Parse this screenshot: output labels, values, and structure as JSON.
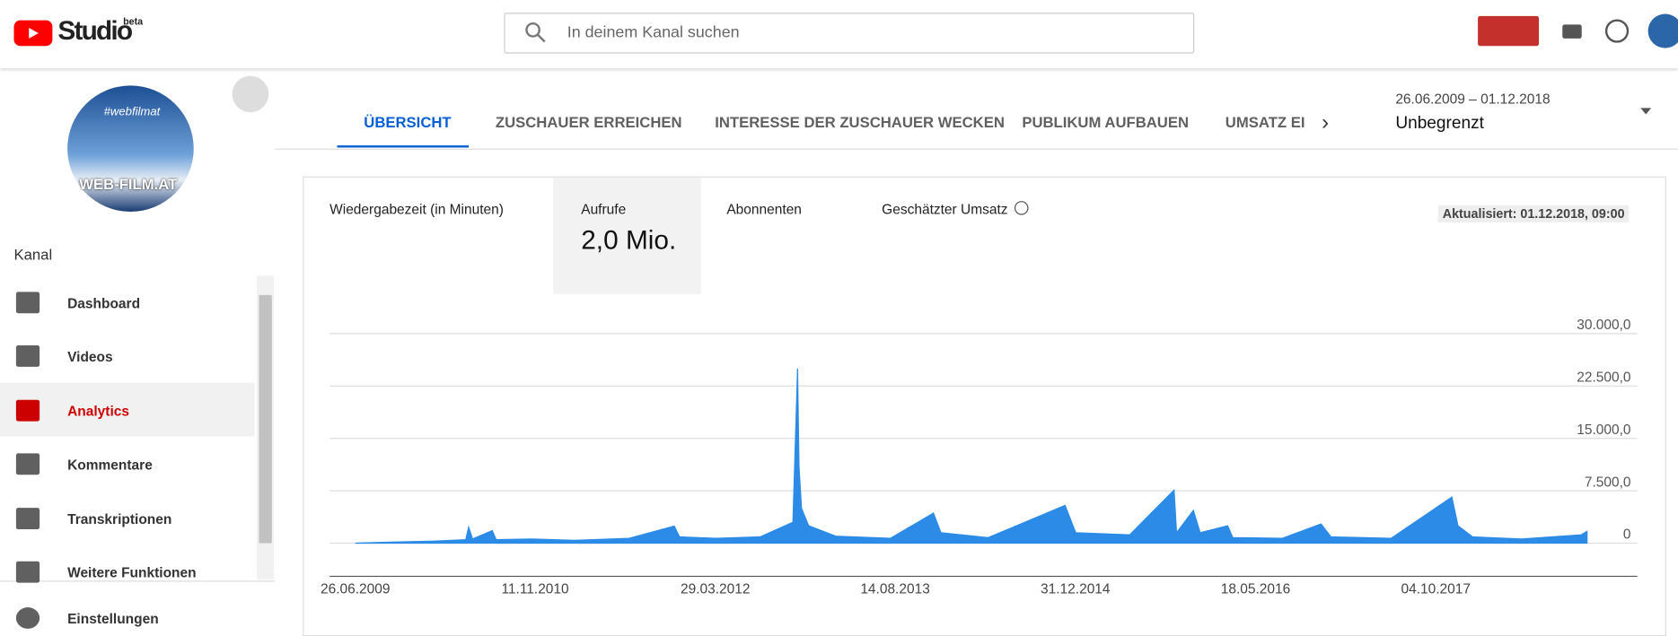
{
  "header": {
    "logo": "Studio",
    "badge": "beta",
    "search_placeholder": "In deinem Kanal suchen"
  },
  "sidebar": {
    "avatar_tag": "#webfilmat",
    "avatar_brand": "WEB-FILM.AT",
    "section": "Kanal",
    "items": [
      "Dashboard",
      "Videos",
      "Analytics",
      "Kommentare",
      "Transkriptionen",
      "Weitere Funktionen"
    ],
    "settings": "Einstellungen"
  },
  "tabs": [
    "ÜBERSICHT",
    "ZUSCHAUER ERREICHEN",
    "INTERESSE DER ZUSCHAUER WECKEN",
    "PUBLIKUM AUFBAUEN",
    "UMSATZ EI"
  ],
  "date_range": {
    "range": "26.06.2009 – 01.12.2018",
    "period": "Unbegrenzt"
  },
  "metrics": [
    {
      "label": "Wiedergabezeit (in Minuten)"
    },
    {
      "label": "Aufrufe",
      "value": "2,0 Mio."
    },
    {
      "label": "Abonnenten"
    },
    {
      "label": "Geschätzter Umsatz"
    }
  ],
  "updated": "Aktualisiert: 01.12.2018, 09:00",
  "chart_data": {
    "type": "area",
    "color": "#2b8be6",
    "grid": true,
    "x": [
      "26.06.2009",
      "01.10.2009",
      "01.02.2010",
      "01.05.2010",
      "09.05.2010",
      "20.05.2010",
      "14.07.2010",
      "25.07.2010",
      "01.11.2010",
      "01.03.2011",
      "01.08.2011",
      "05.12.2011",
      "20.12.2011",
      "01.04.2012",
      "01.08.2012",
      "01.11.2012",
      "14.11.2012",
      "18.11.2012",
      "25.11.2012",
      "15.12.2012",
      "01.03.2013",
      "01.08.2013",
      "29.11.2013",
      "20.12.2013",
      "01.05.2014",
      "02.12.2014",
      "01.01.2015",
      "01.06.2015",
      "03.10.2015",
      "10.10.2015",
      "26.11.2015",
      "15.12.2015",
      "01.03.2016",
      "15.03.2016",
      "01.08.2016",
      "17.11.2016",
      "15.12.2016",
      "01.06.2017",
      "18.11.2017",
      "05.12.2017",
      "15.01.2018",
      "01.06.2018",
      "15.11.2018",
      "01.12.2018"
    ],
    "values": [
      0,
      150,
      300,
      500,
      2300,
      600,
      1800,
      500,
      600,
      400,
      700,
      2450,
      900,
      700,
      900,
      3000,
      25000,
      11000,
      5000,
      2500,
      1000,
      700,
      4300,
      1500,
      800,
      5400,
      1500,
      1200,
      7600,
      1500,
      4700,
      1500,
      2500,
      800,
      700,
      2750,
      900,
      700,
      6600,
      2500,
      900,
      600,
      1200,
      1700
    ],
    "xlim": [
      "26.06.2009",
      "01.12.2018"
    ],
    "xticks": [
      "26.06.2009",
      "11.11.2010",
      "29.03.2012",
      "14.08.2013",
      "31.12.2014",
      "18.05.2016",
      "04.10.2017"
    ],
    "ylim": [
      0,
      30000
    ],
    "yticks": [
      0,
      {
        "value": 7500,
        "label": "7.500,0"
      },
      {
        "value": 15000,
        "label": "15.000,0"
      },
      {
        "value": 22500,
        "label": "22.500,0"
      },
      {
        "value": 30000,
        "label": "30.000,0"
      }
    ]
  }
}
